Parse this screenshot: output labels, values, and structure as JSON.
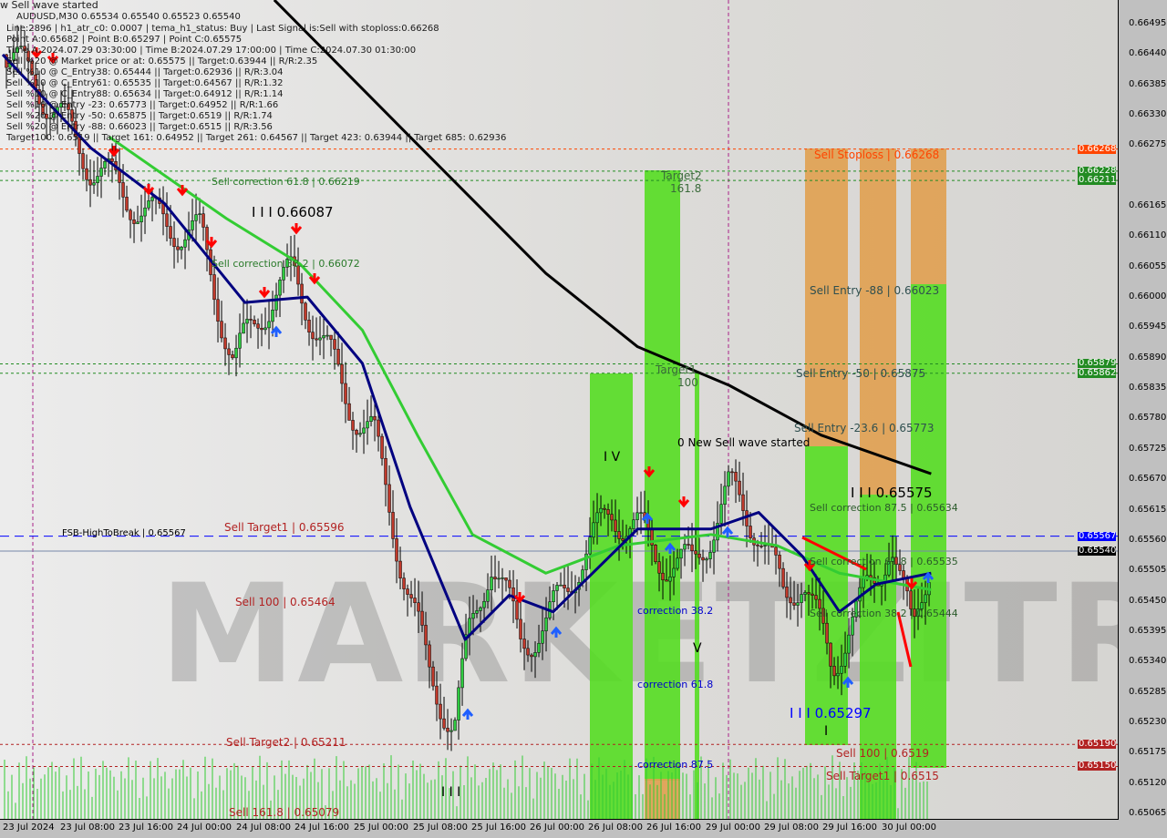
{
  "header": {
    "banner": "w Sell wave started",
    "symbol_line": "AUDUSD,M30  0.65534 0.65540 0.65523 0.65540",
    "info_lines": [
      "Line:2896 | h1_atr_c0: 0.0007 | tema_h1_status: Buy | Last Signal is:Sell with stoploss:0.66268",
      "Point A:0.65682 | Point B:0.65297 | Point C:0.65575",
      "Time A:2024.07.29 03:30:00 | Time B:2024.07.29 17:00:00 | Time C:2024.07.30 01:30:00",
      "Sell %20 @ Market price or at: 0.65575 || Target:0.63944 || R/R:2.35",
      "Sell %10 @ C_Entry38: 0.65444 || Target:0.62936 || R/R:3.04",
      "Sell %10 @ C_Entry61: 0.65535 || Target:0.64567 || R/R:1.32",
      "Sell %10 @ C_Entry88: 0.65634 || Target:0.64912 || R/R:1.14",
      "Sell %10 @ Entry -23: 0.65773 || Target:0.64952 || R/R:1.66",
      "Sell %20 @ Entry -50: 0.65875 || Target:0.6519 || R/R:1.74",
      "Sell %20 @ Entry -88: 0.66023 || Target:0.6515 || R/R:3.56",
      "Target100: 0.6519 || Target 161: 0.64952 || Target 261: 0.64567 || Target 423: 0.63944 || Target 685: 0.62936"
    ]
  },
  "watermark": "MARKETZITRADE",
  "annotations": {
    "sell_stoploss": "Sell Stoploss | 0.66268",
    "sell_correction_618_top": "Sell correction 61.8 | 0.66219",
    "wave_iii_high": "I I I 0.66087",
    "sell_correction_382_top": "Sell correction 38.2 | 0.66072",
    "sell_entry_88": "Sell Entry -88 | 0.66023",
    "sell_entry_50": "Sell Entry -50 | 0.65875",
    "sell_entry_236": "Sell Entry -23.6 | 0.65773",
    "target2": "Target2",
    "target2_level": "161.8",
    "target1": "Target1",
    "target1_level": "100",
    "new_sell_wave": "0 New Sell wave started",
    "wave_iv": "I V",
    "wave_iii_c": "I I I 0.65575",
    "sell_correction_875": "Sell correction 87.5 | 0.65634",
    "fsb": "FSB-HighToBreak | 0.65567",
    "sell_target1_left": "Sell Target1 | 0.65596",
    "sell_correction_618": "Sell correction 61.8 | 0.65535",
    "sell_correction_382": "Sell correction 38.2 | 0.65444",
    "sell_100_left": "Sell 100 | 0.65464",
    "correction_382": "correction 38.2",
    "wave_v": "V",
    "correction_618": "correction 61.8",
    "wave_iii_low": "I I I 0.65297",
    "wave_i": "I",
    "correction_875": "correction 87.5",
    "sell_target2_left": "Sell Target2 | 0.65211",
    "sell_100_right": "Sell 100 | 0.6519",
    "sell_target1_right": "Sell Target1 | 0.6515",
    "sell_1618": "Sell 161.8 | 0.65079",
    "wave_iii_bottom": "I I I"
  },
  "colors": {
    "bull": "#2ecc40",
    "bear": "#c0392b",
    "ma_fast": "#000080",
    "ma_mid": "#33cc33",
    "ma_slow": "#000000",
    "zone_green": "#55dd22",
    "zone_orange": "#e0a050",
    "stop": "#ff4500",
    "level_green": "#228b22",
    "level_blue": "#0000ff",
    "level_red": "#b22222"
  },
  "chart_data": {
    "type": "candlestick",
    "symbol": "AUDUSD",
    "timeframe": "M30",
    "ylim": [
      0.65065,
      0.66495
    ],
    "y_ticks": [
      "0.66495",
      "0.66440",
      "0.66385",
      "0.66330",
      "0.66275",
      "0.66165",
      "0.66110",
      "0.66055",
      "0.66000",
      "0.65945",
      "0.65890",
      "0.65835",
      "0.65780",
      "0.65725",
      "0.65670",
      "0.65615",
      "0.65560",
      "0.65505",
      "0.65450",
      "0.65395",
      "0.65340",
      "0.65285",
      "0.65230",
      "0.65175",
      "0.65120",
      "0.65065"
    ],
    "x_ticks": [
      "23 Jul 2024",
      "23 Jul 08:00",
      "23 Jul 16:00",
      "24 Jul 00:00",
      "24 Jul 08:00",
      "24 Jul 16:00",
      "25 Jul 00:00",
      "25 Jul 08:00",
      "25 Jul 16:00",
      "26 Jul 00:00",
      "26 Jul 08:00",
      "26 Jul 16:00",
      "29 Jul 00:00",
      "29 Jul 08:00",
      "29 Jul 16:00",
      "30 Jul 00:00"
    ],
    "price_tags": [
      {
        "value": "0.66268",
        "color": "#ff4500"
      },
      {
        "value": "0.66228",
        "color": "#228b22"
      },
      {
        "value": "0.66211",
        "color": "#228b22"
      },
      {
        "value": "0.65879",
        "color": "#228b22"
      },
      {
        "value": "0.65862",
        "color": "#228b22"
      },
      {
        "value": "0.65567",
        "color": "#0000ff"
      },
      {
        "value": "0.65540",
        "color": "#000000"
      },
      {
        "value": "0.65190",
        "color": "#b22222"
      },
      {
        "value": "0.65150",
        "color": "#b22222"
      }
    ],
    "close_path": [
      [
        "23 00:30",
        0.66439
      ],
      [
        "23 04:30",
        0.6639
      ],
      [
        "23 12:00",
        0.6624
      ],
      [
        "23 20:30",
        0.66142
      ],
      [
        "24 03:00",
        0.6611
      ],
      [
        "24 07:30",
        0.6588
      ],
      [
        "24 11:30",
        0.6598
      ],
      [
        "24 15:30",
        0.6604
      ],
      [
        "24 19:00",
        0.6594
      ],
      [
        "24 23:00",
        0.6581
      ],
      [
        "25 02:30",
        0.6575
      ],
      [
        "25 06:30",
        0.6551
      ],
      [
        "25 10:00",
        0.6532
      ],
      [
        "25 13:30",
        0.6522
      ],
      [
        "25 15:30",
        0.6538
      ],
      [
        "25 18:30",
        0.6553
      ],
      [
        "25 22:30",
        0.6538
      ],
      [
        "26 02:00",
        0.654
      ],
      [
        "26 06:00",
        0.6551
      ],
      [
        "26 11:00",
        0.6561
      ],
      [
        "26 14:30",
        0.6558
      ],
      [
        "26 17:00",
        0.6553
      ],
      [
        "26 22:00",
        0.6551
      ],
      [
        "29 03:00",
        0.6565
      ],
      [
        "29 07:00",
        0.6558
      ],
      [
        "29 10:30",
        0.6545
      ],
      [
        "29 13:00",
        0.655
      ],
      [
        "29 17:00",
        0.6532
      ],
      [
        "29 19:30",
        0.6542
      ],
      [
        "29 23:00",
        0.6548
      ],
      [
        "30 01:00",
        0.6557
      ],
      [
        "30 04:00",
        0.6538
      ],
      [
        "30 06:30",
        0.6554
      ]
    ],
    "ma_slow": [
      [
        "24 13:00",
        0.66538
      ],
      [
        "25 07:30",
        0.6629
      ],
      [
        "26 02:00",
        0.66043
      ],
      [
        "26 14:30",
        0.6591
      ],
      [
        "29 03:00",
        0.6584
      ],
      [
        "29 15:30",
        0.6575
      ],
      [
        "30 06:30",
        0.6568
      ]
    ],
    "ma_mid": [
      [
        "23 14:30",
        0.6629
      ],
      [
        "24 06:30",
        0.66142
      ],
      [
        "24 16:30",
        0.6606
      ],
      [
        "25 01:00",
        0.6594
      ],
      [
        "25 08:30",
        0.6575
      ],
      [
        "25 16:00",
        0.6557
      ],
      [
        "26 02:00",
        0.655
      ],
      [
        "26 12:00",
        0.6555
      ],
      [
        "29 00:30",
        0.6557
      ],
      [
        "29 09:30",
        0.6555
      ],
      [
        "29 18:00",
        0.655
      ],
      [
        "30 06:30",
        0.6547
      ]
    ],
    "ma_fast": [
      [
        "23 00:00",
        0.66439
      ],
      [
        "23 12:00",
        0.6627
      ],
      [
        "23 22:00",
        0.6617
      ],
      [
        "24 09:00",
        0.6599
      ],
      [
        "24 17:30",
        0.66
      ],
      [
        "25 01:00",
        0.6588
      ],
      [
        "25 07:30",
        0.6562
      ],
      [
        "25 15:00",
        0.6538
      ],
      [
        "25 21:00",
        0.6546
      ],
      [
        "26 03:00",
        0.6543
      ],
      [
        "26 14:30",
        0.6558
      ],
      [
        "29 00:30",
        0.6558
      ],
      [
        "29 07:00",
        0.6561
      ],
      [
        "29 13:00",
        0.6553
      ],
      [
        "29 18:00",
        0.6543
      ],
      [
        "29 23:00",
        0.6548
      ],
      [
        "30 06:30",
        0.655
      ]
    ],
    "levels": [
      {
        "price": 0.66268,
        "style": "stop"
      },
      {
        "price": 0.66228,
        "style": "green"
      },
      {
        "price": 0.66211,
        "style": "green"
      },
      {
        "price": 0.65879,
        "style": "green"
      },
      {
        "price": 0.65862,
        "style": "green"
      },
      {
        "price": 0.65567,
        "style": "blue"
      },
      {
        "price": 0.6554,
        "style": "current"
      },
      {
        "price": 0.6519,
        "style": "red"
      },
      {
        "price": 0.6515,
        "style": "red"
      }
    ]
  }
}
